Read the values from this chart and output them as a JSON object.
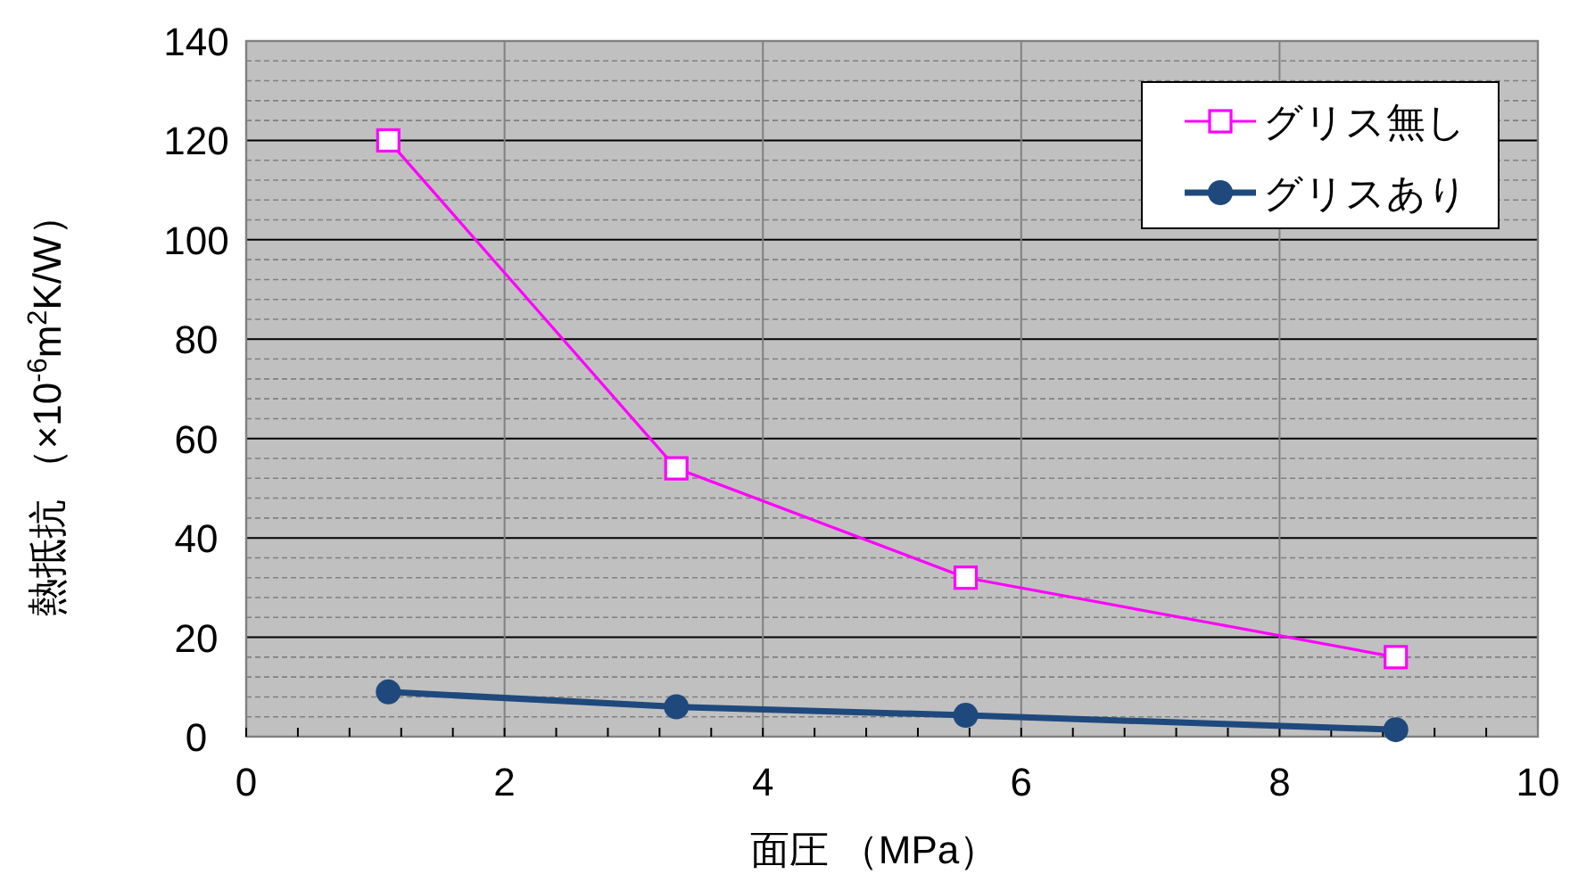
{
  "chart_data": {
    "type": "line",
    "xlabel": "面圧 （MPa）",
    "ylabel": "熱抵抗 （×10$^{-6}$m$^{2}$K/W）",
    "xlim": [
      0,
      10
    ],
    "xticks": [
      0,
      2,
      4,
      6,
      8,
      10
    ],
    "ylim": [
      0,
      140
    ],
    "yticks": [
      0,
      20,
      40,
      60,
      80,
      100,
      120,
      140
    ],
    "grid": true,
    "legend": "top right",
    "line_style": "solid",
    "series": [
      {
        "name": "グリス無し",
        "color": "#ff00ff",
        "marker": "square",
        "x": [
          1.1,
          3.33,
          5.57,
          8.9
        ],
        "values": [
          120,
          54,
          32,
          16
        ]
      },
      {
        "name": "グリスあり",
        "color": "#1f497d",
        "marker": "circle",
        "x": [
          1.1,
          3.33,
          5.57,
          8.9
        ],
        "values": [
          9,
          6,
          4.3,
          1.4
        ]
      }
    ]
  }
}
